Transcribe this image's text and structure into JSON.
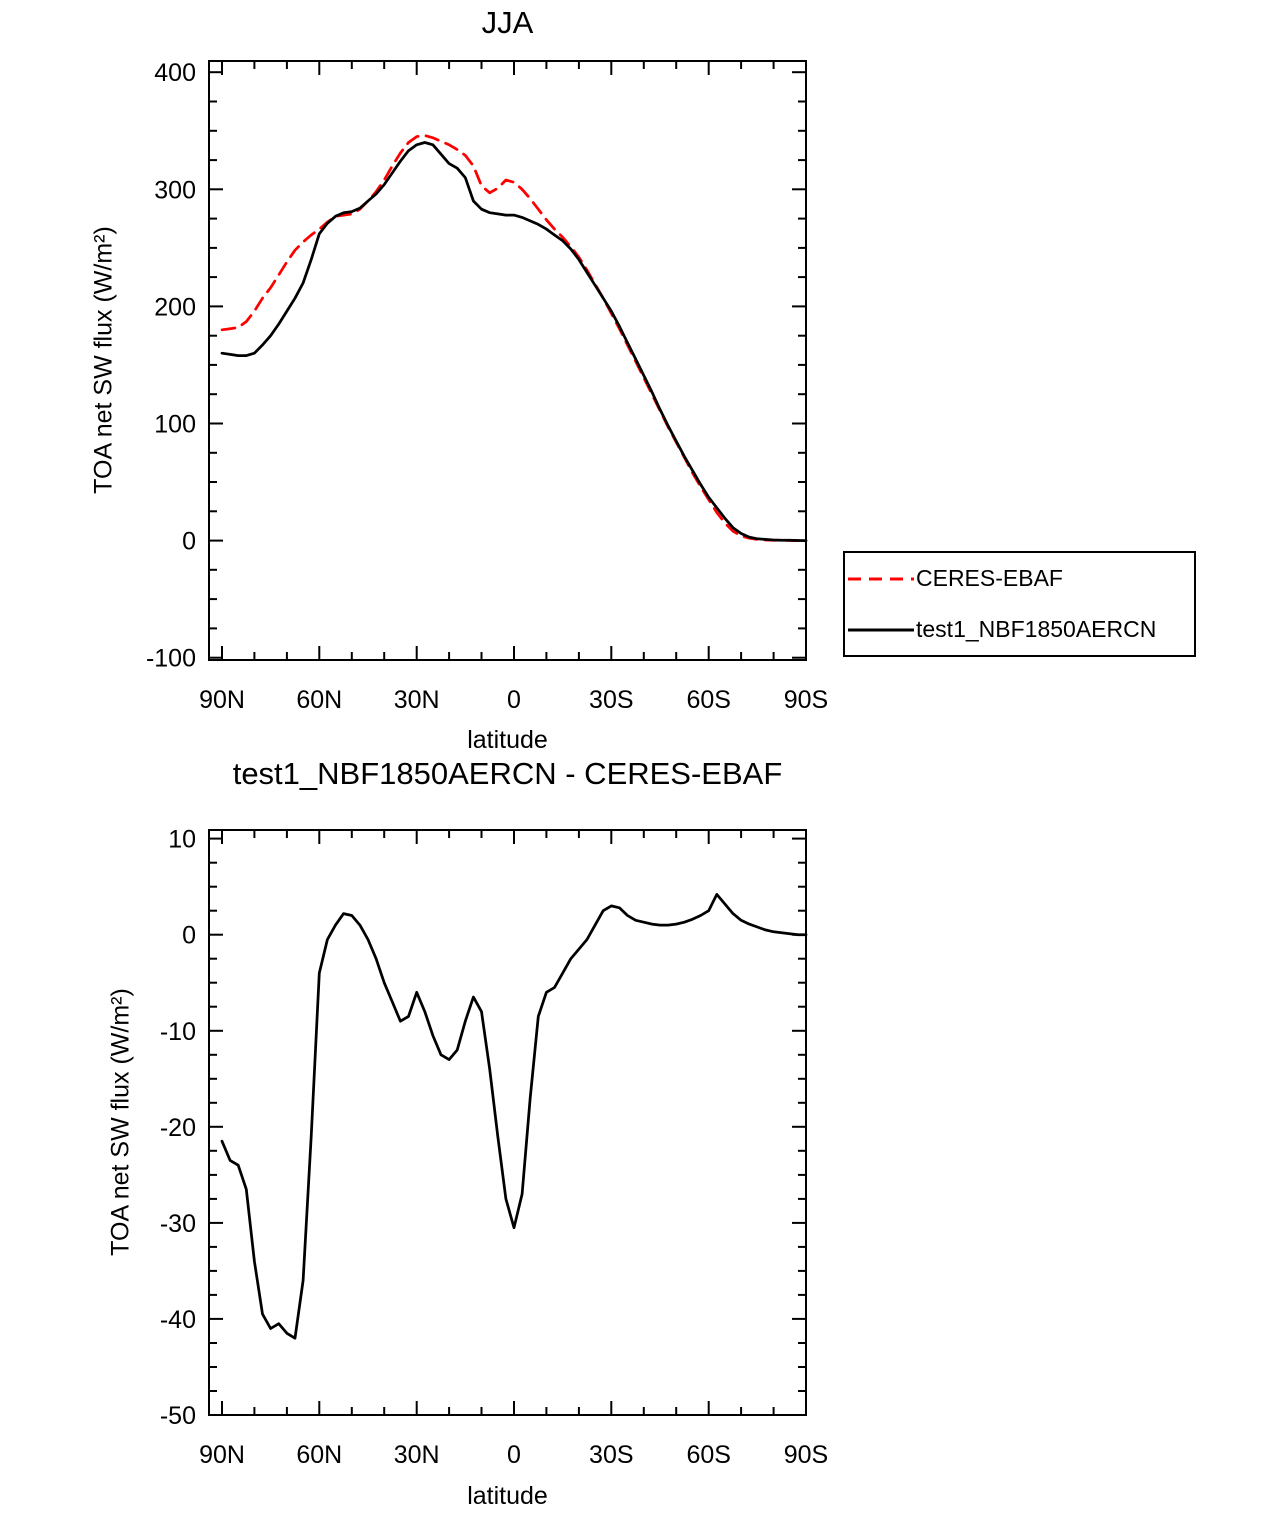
{
  "figure": {
    "background": "#ffffff",
    "frame_color": "#000000"
  },
  "legend": {
    "entries": [
      {
        "label": "CERES-EBAF",
        "color": "#ff0000",
        "style": "dashed"
      },
      {
        "label": "test1_NBF1850AERCN",
        "color": "#000000",
        "style": "solid"
      }
    ]
  },
  "chart_data": [
    {
      "type": "line",
      "title": "JJA",
      "xlabel": "latitude",
      "ylabel": "TOA net SW flux (W/m²)",
      "grid": false,
      "legend_position": "outside-right-below",
      "xlim": [
        94,
        -90
      ],
      "ylim": [
        -102,
        409.6
      ],
      "xtick_values": [
        90,
        60,
        30,
        0,
        -30,
        -60,
        -90
      ],
      "xtick_labels": [
        "90N",
        "60N",
        "30N",
        "0",
        "30S",
        "60S",
        "90S"
      ],
      "xminor_step": 10,
      "ytick_values": [
        400,
        300,
        200,
        100,
        0,
        -100
      ],
      "yminor_step": 25,
      "x_degrees_north": [
        90,
        87.5,
        85,
        82.5,
        80,
        77.5,
        75,
        72.5,
        70,
        67.5,
        65,
        62.5,
        60,
        57.5,
        55,
        52.5,
        50,
        47.5,
        45,
        42.5,
        40,
        37.5,
        35,
        32.5,
        30,
        27.5,
        25,
        22.5,
        20,
        17.5,
        15,
        12.5,
        10,
        7.5,
        5,
        2.5,
        0,
        -2.5,
        -5,
        -7.5,
        -10,
        -12.5,
        -15,
        -17.5,
        -20,
        -22.5,
        -25,
        -27.5,
        -30,
        -32.5,
        -35,
        -37.5,
        -40,
        -42.5,
        -45,
        -47.5,
        -50,
        -52.5,
        -55,
        -57.5,
        -60,
        -62.5,
        -65,
        -67.5,
        -70,
        -72.5,
        -75,
        -77.5,
        -80,
        -82.5,
        -85,
        -87.5,
        -90
      ],
      "series": [
        {
          "name": "CERES-EBAF",
          "color": "#ff0000",
          "dash": [
            13,
            8
          ],
          "width": 2.75,
          "values": [
            180,
            181,
            182,
            187,
            196,
            207,
            216,
            227,
            238,
            248,
            255,
            261,
            266,
            272,
            277,
            278,
            279,
            283,
            290,
            298,
            308,
            320,
            331,
            340,
            345,
            346,
            344,
            341,
            338,
            334,
            329,
            320,
            303,
            297,
            301,
            308,
            306,
            300,
            292,
            283,
            274,
            266,
            259,
            251,
            242,
            231,
            219,
            207,
            194,
            181,
            167,
            153,
            139,
            125,
            111,
            97,
            84,
            71,
            58,
            46,
            35,
            24,
            15,
            8,
            4,
            2,
            1,
            0.5,
            0.3,
            0.2,
            0.1,
            0,
            0
          ]
        },
        {
          "name": "test1_NBF1850AERCN",
          "color": "#000000",
          "dash": [],
          "width": 2.75,
          "values": [
            160,
            159,
            158,
            158,
            160,
            167,
            175,
            185,
            196,
            207,
            220,
            240,
            262,
            271,
            277,
            280,
            281,
            284,
            290,
            296,
            304,
            314,
            324,
            333,
            338,
            340,
            338,
            330,
            322,
            318,
            310,
            290,
            283,
            280,
            279,
            278,
            278,
            276,
            273,
            270,
            266,
            261,
            256,
            249,
            240,
            229,
            218,
            207,
            196,
            183,
            169,
            155,
            141,
            127,
            112,
            98,
            85,
            72,
            60,
            48,
            37,
            28,
            19,
            11,
            6,
            3,
            1.5,
            1,
            0.5,
            0.3,
            0.2,
            0.1,
            0
          ]
        }
      ]
    },
    {
      "type": "line",
      "title": "test1_NBF1850AERCN - CERES-EBAF",
      "xlabel": "latitude",
      "ylabel": "TOA net SW flux (W/m²)",
      "grid": false,
      "xlim": [
        94,
        -90
      ],
      "ylim": [
        -50,
        10.9
      ],
      "xtick_values": [
        90,
        60,
        30,
        0,
        -30,
        -60,
        -90
      ],
      "xtick_labels": [
        "90N",
        "60N",
        "30N",
        "0",
        "30S",
        "60S",
        "90S"
      ],
      "xminor_step": 10,
      "ytick_values": [
        10,
        0,
        -10,
        -20,
        -30,
        -40,
        -50
      ],
      "yminor_step": 2.5,
      "x_degrees_north": [
        90,
        87.5,
        85,
        82.5,
        80,
        77.5,
        75,
        72.5,
        70,
        67.5,
        65,
        62.5,
        60,
        57.5,
        55,
        52.5,
        50,
        47.5,
        45,
        42.5,
        40,
        37.5,
        35,
        32.5,
        30,
        27.5,
        25,
        22.5,
        20,
        17.5,
        15,
        12.5,
        10,
        7.5,
        5,
        2.5,
        0,
        -2.5,
        -5,
        -7.5,
        -10,
        -12.5,
        -15,
        -17.5,
        -20,
        -22.5,
        -25,
        -27.5,
        -30,
        -32.5,
        -35,
        -37.5,
        -40,
        -42.5,
        -45,
        -47.5,
        -50,
        -52.5,
        -55,
        -57.5,
        -60,
        -62.5,
        -65,
        -67.5,
        -70,
        -72.5,
        -75,
        -77.5,
        -80,
        -82.5,
        -85,
        -87.5,
        -90
      ],
      "series": [
        {
          "name": "test1_NBF1850AERCN - CERES-EBAF",
          "color": "#000000",
          "dash": [],
          "width": 2.75,
          "values": [
            -21.5,
            -23.5,
            -24,
            -26.5,
            -34,
            -39.5,
            -41,
            -40.5,
            -41.5,
            -42,
            -36,
            -21,
            -4,
            -0.5,
            1,
            2.2,
            2,
            1,
            -0.5,
            -2.5,
            -5,
            -7,
            -9,
            -8.5,
            -6,
            -8,
            -10.5,
            -12.5,
            -13,
            -12,
            -9,
            -6.5,
            -8,
            -14,
            -21,
            -27.5,
            -30.5,
            -27,
            -17,
            -8.5,
            -6,
            -5.5,
            -4,
            -2.5,
            -1.5,
            -0.5,
            1,
            2.5,
            3,
            2.8,
            2,
            1.5,
            1.3,
            1.1,
            1,
            1,
            1.1,
            1.3,
            1.6,
            2,
            2.5,
            4.2,
            3.2,
            2.2,
            1.5,
            1.1,
            0.8,
            0.5,
            0.3,
            0.2,
            0.1,
            0,
            0
          ]
        }
      ]
    }
  ]
}
